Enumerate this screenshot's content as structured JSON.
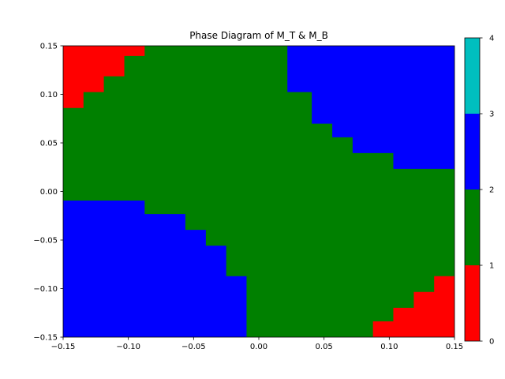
{
  "chart_data": {
    "type": "heatmap",
    "title": "Phase Diagram of M_T & M_B",
    "xlabel": "",
    "ylabel": "",
    "xlim": [
      -0.15,
      0.15
    ],
    "ylim": [
      -0.15,
      0.15
    ],
    "x_ticks": [
      -0.15,
      -0.1,
      -0.05,
      0.0,
      0.05,
      0.1,
      0.15
    ],
    "x_tick_labels": [
      "−0.15",
      "−0.10",
      "−0.05",
      "0.00",
      "0.05",
      "0.10",
      "0.15"
    ],
    "y_ticks": [
      -0.15,
      -0.1,
      -0.05,
      0.0,
      0.05,
      0.1,
      0.15
    ],
    "y_tick_labels": [
      "−0.15",
      "−0.10",
      "−0.05",
      "0.00",
      "0.05",
      "0.10",
      "0.15"
    ],
    "grid": false,
    "colorbar": {
      "range": [
        0,
        4
      ],
      "ticks": [
        0,
        1,
        2,
        3,
        4
      ],
      "tick_labels": [
        "0",
        "1",
        "2",
        "3",
        "4"
      ],
      "bands": [
        {
          "from": 0,
          "to": 1,
          "color": "#ff0000"
        },
        {
          "from": 1,
          "to": 2,
          "color": "#008000"
        },
        {
          "from": 2,
          "to": 3,
          "color": "#0000ff"
        },
        {
          "from": 3,
          "to": 4,
          "color": "#00bfbf"
        }
      ]
    },
    "phase_values": {
      "red": 0,
      "green": 1,
      "blue": 2
    },
    "regions": [
      {
        "phase": 0,
        "points": [
          [
            -0.15,
            0.15
          ],
          [
            -0.0875,
            0.15
          ],
          [
            -0.0875,
            0.1395
          ],
          [
            -0.1031,
            0.1395
          ],
          [
            -0.1031,
            0.1186
          ],
          [
            -0.1188,
            0.1186
          ],
          [
            -0.1188,
            0.1023
          ],
          [
            -0.1344,
            0.1023
          ],
          [
            -0.1344,
            0.086
          ],
          [
            -0.15,
            0.086
          ]
        ]
      },
      {
        "phase": 2,
        "points": [
          [
            0.0219,
            0.15
          ],
          [
            0.15,
            0.15
          ],
          [
            0.15,
            0.0233
          ],
          [
            0.1031,
            0.0233
          ],
          [
            0.1031,
            0.0395
          ],
          [
            0.0719,
            0.0395
          ],
          [
            0.0719,
            0.0558
          ],
          [
            0.0563,
            0.0558
          ],
          [
            0.0563,
            0.0698
          ],
          [
            0.0406,
            0.0698
          ],
          [
            0.0406,
            0.1023
          ],
          [
            0.0219,
            0.1023
          ]
        ]
      },
      {
        "phase": 2,
        "points": [
          [
            -0.15,
            -0.0093
          ],
          [
            -0.0875,
            -0.0093
          ],
          [
            -0.0875,
            -0.0233
          ],
          [
            -0.0563,
            -0.0233
          ],
          [
            -0.0563,
            -0.0395
          ],
          [
            -0.0406,
            -0.0395
          ],
          [
            -0.0406,
            -0.0558
          ],
          [
            -0.025,
            -0.0558
          ],
          [
            -0.025,
            -0.0872
          ],
          [
            -0.0094,
            -0.0872
          ],
          [
            -0.0094,
            -0.15
          ],
          [
            -0.15,
            -0.15
          ]
        ]
      },
      {
        "phase": 0,
        "points": [
          [
            0.0875,
            -0.15
          ],
          [
            0.15,
            -0.15
          ],
          [
            0.15,
            -0.0872
          ],
          [
            0.1344,
            -0.0872
          ],
          [
            0.1344,
            -0.1035
          ],
          [
            0.1188,
            -0.1035
          ],
          [
            0.1188,
            -0.1198
          ],
          [
            0.1031,
            -0.1198
          ],
          [
            0.1031,
            -0.1337
          ],
          [
            0.0875,
            -0.1337
          ]
        ]
      }
    ],
    "background_phase": 1
  }
}
